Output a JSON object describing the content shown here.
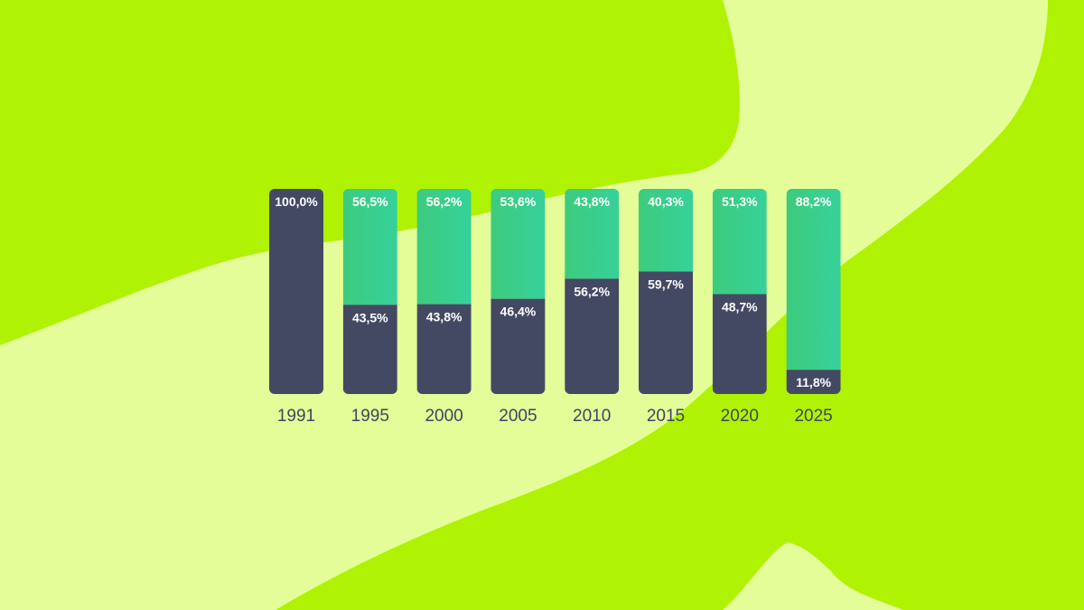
{
  "colors": {
    "background_light": "#E4FD98",
    "background_lime": "#B0F203",
    "series_bottom": "#444963",
    "series_top_start": "#3DCB7E",
    "series_top_end": "#36D19A",
    "label_text": "#FFFFFF",
    "tick_text": "#3F4560"
  },
  "chart_data": {
    "type": "bar",
    "stacked": true,
    "normalized_percent": true,
    "categories": [
      "1991",
      "1995",
      "2000",
      "2005",
      "2010",
      "2015",
      "2020",
      "2025"
    ],
    "series": [
      {
        "values": [
          100.0,
          43.5,
          43.8,
          46.4,
          56.2,
          59.7,
          48.7,
          11.8
        ],
        "labels": [
          "100,0%",
          "43,5%",
          "43,8%",
          "46,4%",
          "56,2%",
          "59,7%",
          "48,7%",
          "11,8%"
        ],
        "color": "#444963",
        "position": "bottom"
      },
      {
        "values": [
          0.0,
          56.5,
          56.2,
          53.6,
          43.8,
          40.3,
          51.3,
          88.2
        ],
        "labels": [
          "",
          "56,5%",
          "56,2%",
          "53,6%",
          "43,8%",
          "40,3%",
          "51,3%",
          "88,2%"
        ],
        "color": "#3DCB7E",
        "position": "top"
      }
    ],
    "ylim": [
      0,
      100
    ],
    "grid": false,
    "legend": "none",
    "title": "",
    "xlabel": "",
    "ylabel": ""
  }
}
